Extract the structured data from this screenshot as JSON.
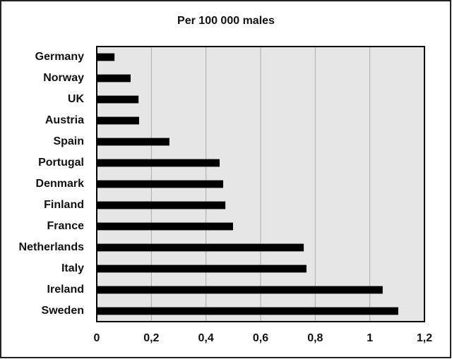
{
  "chart_data": {
    "type": "barh",
    "title": "Per 100 000 males",
    "categories": [
      "Germany",
      "Norway",
      "UK",
      "Austria",
      "Spain",
      "Portugal",
      "Denmark",
      "Finland",
      "France",
      "Netherlands",
      "Italy",
      "Ireland",
      "Sweden"
    ],
    "values": [
      0.065,
      0.124,
      0.153,
      0.155,
      0.266,
      0.45,
      0.463,
      0.471,
      0.499,
      0.758,
      0.768,
      1.047,
      1.104
    ],
    "color": "#000000",
    "xlim": [
      0,
      1.2
    ],
    "xticks": [
      0,
      {
        "value": 0.2,
        "label": "0,2"
      },
      {
        "value": 0.4,
        "label": "0,4"
      },
      {
        "value": 0.6,
        "label": "0,6"
      },
      {
        "value": 0.8,
        "label": "0,8"
      },
      1,
      {
        "value": 1.2,
        "label": "1,2"
      }
    ],
    "grid": true
  }
}
